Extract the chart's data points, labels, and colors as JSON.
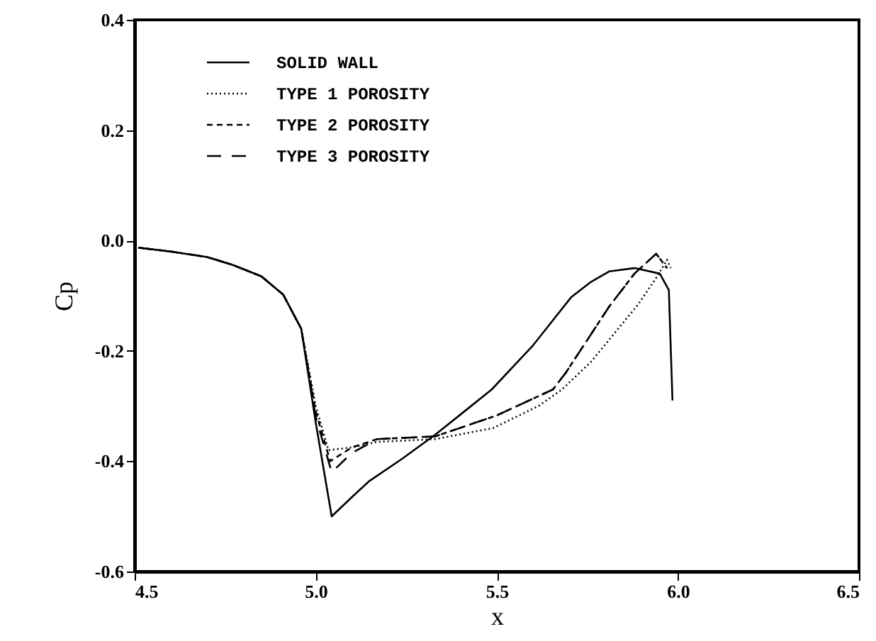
{
  "chart_data": {
    "type": "line",
    "xlabel": "x",
    "ylabel": "Cp",
    "xlim": [
      4.5,
      6.5
    ],
    "xticks": [
      {
        "value": 4.5,
        "label": "4.5"
      },
      {
        "value": 5,
        "label": "5.0"
      },
      {
        "value": 5.5,
        "label": "5.5"
      },
      {
        "value": 6,
        "label": "6.0"
      },
      {
        "value": 6.5,
        "label": "6.5"
      }
    ],
    "ylim": [
      -0.6,
      0.4
    ],
    "yticks": [
      {
        "value": -0.6,
        "label": "-0.6"
      },
      {
        "value": -0.4,
        "label": "-0.4"
      },
      {
        "value": -0.2,
        "label": "-0.2"
      },
      {
        "value": 0,
        "label": "0.0"
      },
      {
        "value": 0.2,
        "label": "0.2"
      },
      {
        "value": 0.4,
        "label": "0.4"
      }
    ],
    "grid": false,
    "legend": "top left",
    "marker": "none",
    "series": [
      {
        "name": "SOLID WALL",
        "color": "#000000",
        "line_style": "solid",
        "x": [
          4.51,
          4.6,
          4.7,
          4.77,
          4.85,
          4.91,
          4.96,
          5.0,
          5.044,
          5.1,
          5.146,
          5.24,
          5.33,
          5.41,
          5.486,
          5.6,
          5.705,
          5.76,
          5.81,
          5.88,
          5.95,
          5.975,
          5.985
        ],
        "values": [
          -0.013,
          -0.02,
          -0.03,
          -0.044,
          -0.065,
          -0.098,
          -0.16,
          -0.33,
          -0.5,
          -0.465,
          -0.437,
          -0.395,
          -0.352,
          -0.31,
          -0.27,
          -0.19,
          -0.103,
          -0.075,
          -0.056,
          -0.05,
          -0.06,
          -0.09,
          -0.29
        ]
      },
      {
        "name": "TYPE 1 POROSITY",
        "color": "#000000",
        "line_style": "dotted",
        "x": [
          4.51,
          4.6,
          4.7,
          4.77,
          4.85,
          4.91,
          4.96,
          5.0,
          5.035,
          5.1,
          5.17,
          5.33,
          5.49,
          5.615,
          5.68,
          5.76,
          5.89,
          5.94,
          5.97,
          5.98
        ],
        "values": [
          -0.013,
          -0.02,
          -0.03,
          -0.044,
          -0.065,
          -0.098,
          -0.16,
          -0.3,
          -0.38,
          -0.375,
          -0.365,
          -0.36,
          -0.34,
          -0.3,
          -0.27,
          -0.22,
          -0.116,
          -0.068,
          -0.035,
          -0.05
        ]
      },
      {
        "name": "TYPE 2 POROSITY",
        "color": "#000000",
        "line_style": "dashed",
        "x": [
          4.51,
          4.6,
          4.7,
          4.77,
          4.85,
          4.91,
          4.96,
          5.0,
          5.04,
          5.1,
          5.17,
          5.33,
          5.5,
          5.655,
          5.69,
          5.81,
          5.88,
          5.94,
          5.97
        ],
        "values": [
          -0.013,
          -0.02,
          -0.03,
          -0.044,
          -0.065,
          -0.098,
          -0.16,
          -0.31,
          -0.4,
          -0.375,
          -0.36,
          -0.355,
          -0.317,
          -0.27,
          -0.24,
          -0.12,
          -0.06,
          -0.024,
          -0.05
        ]
      },
      {
        "name": "TYPE 3 POROSITY",
        "color": "#000000",
        "line_style": "dashed",
        "x": [
          4.51,
          4.6,
          4.7,
          4.77,
          4.85,
          4.91,
          4.96,
          5.0,
          5.044,
          5.1,
          5.17,
          5.33,
          5.5,
          5.655,
          5.69,
          5.81,
          5.88,
          5.94,
          5.97
        ],
        "values": [
          -0.013,
          -0.02,
          -0.03,
          -0.044,
          -0.065,
          -0.098,
          -0.16,
          -0.32,
          -0.42,
          -0.385,
          -0.36,
          -0.355,
          -0.317,
          -0.27,
          -0.24,
          -0.12,
          -0.06,
          -0.024,
          -0.05
        ]
      }
    ]
  }
}
